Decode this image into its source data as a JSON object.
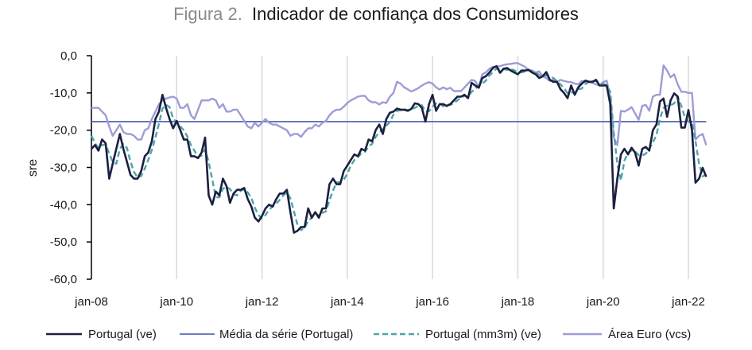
{
  "chart_data": {
    "type": "line",
    "title_prefix": "Figura 2.",
    "title": "Indicador de confiança dos Consumidores",
    "xlabel": "",
    "ylabel": "sre",
    "ylim": [
      -60,
      0
    ],
    "yticks": [
      "0,0",
      "-10,0",
      "-20,0",
      "-30,0",
      "-40,0",
      "-50,0",
      "-60,0"
    ],
    "ytick_values": [
      0,
      -10,
      -20,
      -30,
      -40,
      -50,
      -60
    ],
    "xticks": [
      "jan-08",
      "jan-10",
      "jan-12",
      "jan-14",
      "jan-16",
      "jan-18",
      "jan-20",
      "jan-22"
    ],
    "x_start": "jan-08",
    "x_end": "jun-22",
    "frequency": "monthly",
    "grid": "vertical at x ticks",
    "legend_position": "bottom",
    "series": [
      {
        "name": "Portugal (ve)",
        "color": "#1c1f40",
        "style": "solid",
        "values": [
          -25,
          -24,
          -25.5,
          -22.5,
          -23.5,
          -33,
          -29,
          -25,
          -21,
          -25,
          -28.5,
          -32,
          -33,
          -33,
          -31,
          -27,
          -26,
          -23,
          -17,
          -15,
          -10.5,
          -14,
          -17,
          -19.5,
          -17.5,
          -20,
          -22.5,
          -22.5,
          -27,
          -27,
          -27.5,
          -26,
          -22,
          -37.5,
          -40,
          -36.5,
          -37.5,
          -33,
          -35,
          -39.5,
          -37,
          -36,
          -36,
          -35.5,
          -38.5,
          -40.5,
          -43.5,
          -44.5,
          -43,
          -41,
          -40,
          -40.5,
          -38.5,
          -37,
          -37,
          -36,
          -42,
          -47.5,
          -47,
          -46,
          -46,
          -41,
          -43.5,
          -42,
          -43.5,
          -41,
          -41,
          -34.5,
          -33,
          -34.5,
          -34.5,
          -31,
          -29.5,
          -28,
          -26.5,
          -27,
          -25,
          -25.5,
          -22.5,
          -23,
          -20,
          -18.5,
          -21,
          -17,
          -15.3,
          -15,
          -14.2,
          -14.5,
          -14.5,
          -14.8,
          -14.3,
          -12.8,
          -13,
          -14,
          -17.7,
          -13,
          -10.5,
          -14.8,
          -13,
          -13,
          -13.5,
          -13,
          -12,
          -11,
          -11,
          -10.5,
          -11.4,
          -7.3,
          -8,
          -8.6,
          -6,
          -5.5,
          -4.5,
          -3.3,
          -2.8,
          -4.6,
          -3.5,
          -3.3,
          -4,
          -4.5,
          -5,
          -4,
          -4,
          -3.8,
          -4.5,
          -5,
          -6,
          -5.5,
          -4.4,
          -6.5,
          -7,
          -7,
          -9,
          -10,
          -11.4,
          -8,
          -10.5,
          -8.5,
          -7.5,
          -6.7,
          -7,
          -7,
          -6.5,
          -8,
          -8,
          -8,
          -13,
          -41,
          -33,
          -26.5,
          -25,
          -26.5,
          -24.7,
          -26,
          -29.5,
          -25,
          -24.5,
          -25.5,
          -20,
          -18.5,
          -12.3,
          -11.5,
          -16.4,
          -12,
          -10.1,
          -11,
          -19.3,
          -19.3,
          -14.6,
          -20,
          -34.1,
          -33,
          -30.1,
          -32.5
        ]
      },
      {
        "name": "Média da série (Portugal)",
        "color": "#5a6cb5",
        "style": "solid",
        "constant": -17.7
      },
      {
        "name": "Portugal (mm3m) (ve)",
        "color": "#4ea5a6",
        "style": "dashed",
        "values": [
          -21.5,
          -23.5,
          -24.8,
          -24,
          -23.8,
          -26.3,
          -28.5,
          -29,
          -25,
          -23.7,
          -24.8,
          -28.5,
          -31.2,
          -32.7,
          -32.3,
          -30.3,
          -28,
          -25.3,
          -22,
          -18.3,
          -14.2,
          -13.2,
          -13.8,
          -16.8,
          -18,
          -19,
          -20,
          -21.7,
          -24,
          -25.5,
          -27.2,
          -26.8,
          -25.2,
          -28.5,
          -33.2,
          -38,
          -38,
          -35.7,
          -35.2,
          -35.8,
          -37.2,
          -37.5,
          -36.3,
          -35.8,
          -36.7,
          -38.2,
          -40.8,
          -42.8,
          -43.7,
          -42.8,
          -41.3,
          -40.5,
          -39.7,
          -38.7,
          -37.5,
          -36.7,
          -38.3,
          -41.8,
          -45.5,
          -46.8,
          -46.3,
          -44.3,
          -43.5,
          -42.2,
          -43,
          -42.2,
          -41.8,
          -38.8,
          -36.2,
          -34,
          -34,
          -33.3,
          -31.7,
          -29.5,
          -28,
          -27.2,
          -26.2,
          -25.8,
          -24.3,
          -23.7,
          -21.8,
          -20.5,
          -19.8,
          -18.8,
          -17.8,
          -15.8,
          -14.8,
          -14.6,
          -14.4,
          -14.6,
          -14.5,
          -14,
          -13.4,
          -13.3,
          -14.9,
          -14.9,
          -13.7,
          -12.8,
          -12.8,
          -13.6,
          -13.2,
          -13.2,
          -12.8,
          -12,
          -11.3,
          -10.8,
          -11,
          -9.7,
          -8.9,
          -8,
          -7.5,
          -6.7,
          -5.3,
          -4.4,
          -3.5,
          -3.6,
          -3.6,
          -3.8,
          -3.6,
          -3.9,
          -4.5,
          -4.5,
          -4.3,
          -3.9,
          -4.1,
          -4.4,
          -5.2,
          -5.5,
          -5.3,
          -5.5,
          -6,
          -6.8,
          -7.7,
          -8.7,
          -10.1,
          -9.8,
          -10,
          -9,
          -8.8,
          -7.6,
          -7.1,
          -6.9,
          -6.8,
          -7.2,
          -7.5,
          -8,
          -9.7,
          -20.7,
          -29,
          -33.5,
          -28.2,
          -26,
          -25.4,
          -25.7,
          -26.7,
          -26.8,
          -26.3,
          -25,
          -23.3,
          -21.3,
          -16.9,
          -14.1,
          -13.4,
          -13.3,
          -12.8,
          -11,
          -13.5,
          -16.5,
          -17.7,
          -18,
          -22.9,
          -29,
          -32.4,
          -31.9
        ]
      },
      {
        "name": "Área Euro (vcs)",
        "color": "#9c9cd8",
        "style": "solid",
        "values": [
          -14,
          -14,
          -14,
          -15,
          -16,
          -19,
          -21.5,
          -20,
          -18.5,
          -20.5,
          -21,
          -21,
          -21.5,
          -22.5,
          -22.5,
          -20,
          -19.5,
          -17,
          -15,
          -13,
          -12,
          -11.5,
          -11.2,
          -11,
          -11.5,
          -14,
          -14,
          -13,
          -16,
          -17,
          -14.5,
          -12,
          -12,
          -12,
          -11.5,
          -12,
          -14,
          -13,
          -15,
          -15,
          -14.5,
          -14.5,
          -16,
          -17.5,
          -19,
          -19.5,
          -18,
          -19,
          -18,
          -17,
          -18,
          -18.5,
          -18.5,
          -19,
          -19.5,
          -20,
          -21.5,
          -21,
          -21,
          -21.8,
          -20.5,
          -19.5,
          -19.5,
          -18.5,
          -19,
          -18,
          -17.5,
          -16,
          -15,
          -14.5,
          -14.5,
          -13.7,
          -12.7,
          -12,
          -11.5,
          -11,
          -10.8,
          -10.8,
          -12,
          -12.5,
          -12.5,
          -13.1,
          -12.5,
          -12.7,
          -11,
          -10,
          -7,
          -7.5,
          -8.5,
          -9,
          -9.6,
          -9.2,
          -8.7,
          -8,
          -7.5,
          -7.1,
          -7.5,
          -8.5,
          -9.1,
          -8.5,
          -9,
          -8.6,
          -9.5,
          -9.5,
          -9.5,
          -8.5,
          -7.5,
          -6.5,
          -6.8,
          -8.5,
          -5,
          -4.5,
          -3.5,
          -3,
          -3,
          -2.8,
          -2.5,
          -2.3,
          -2.2,
          -2,
          -2,
          -2.5,
          -3,
          -3.8,
          -4,
          -4.5,
          -4.2,
          -5.5,
          -6,
          -6.8,
          -6.4,
          -7,
          -6.5,
          -6.8,
          -7,
          -7.1,
          -7.5,
          -7.7,
          -6.8,
          -7,
          -7,
          -7.3,
          -7.7,
          -8,
          -7.1,
          -6.7,
          -11,
          -22,
          -24,
          -14.8,
          -15,
          -14.5,
          -13.8,
          -15.5,
          -17.2,
          -13.5,
          -13.2,
          -14.8,
          -11,
          -10.5,
          -10.5,
          -2.6,
          -4,
          -5.8,
          -5,
          -7.7,
          -9.7,
          -9.7,
          -10,
          -10,
          -22.5,
          -21.5,
          -21,
          -24
        ]
      }
    ]
  }
}
